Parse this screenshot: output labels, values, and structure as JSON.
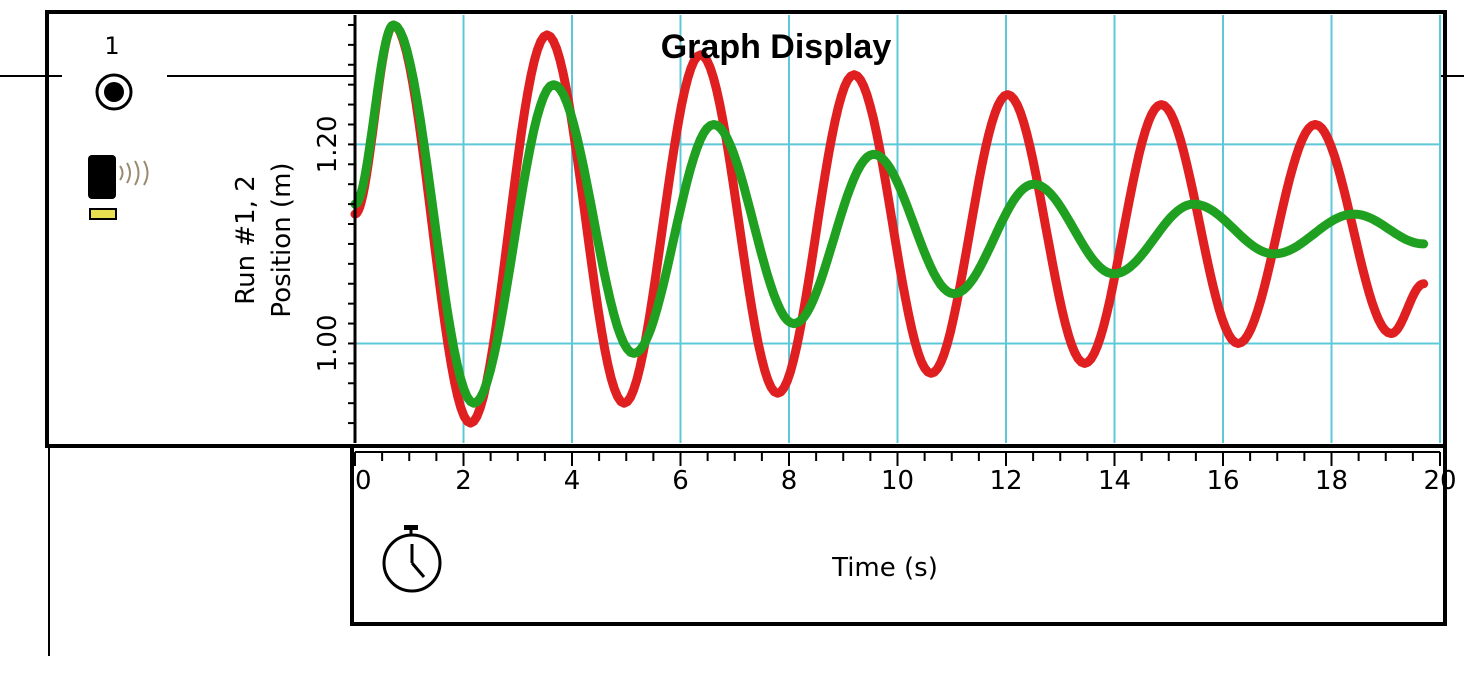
{
  "chart_data": {
    "type": "line",
    "title": "Graph Display",
    "xlabel": "Time (s)",
    "ylabel": "Position (m)",
    "run_label": "Run #1, 2",
    "xlim": [
      0,
      20
    ],
    "ylim": [
      0.9,
      1.33
    ],
    "x_ticks": [
      "0",
      "2",
      "4",
      "6",
      "8",
      "10",
      "12",
      "14",
      "16",
      "18",
      "20"
    ],
    "y_ticks": [
      "1.00",
      "1.20"
    ],
    "grid": true,
    "series": [
      {
        "color": "#e02020",
        "x": [
          0.0,
          0.71,
          2.13,
          3.54,
          4.96,
          6.37,
          7.79,
          9.2,
          10.62,
          12.03,
          13.45,
          14.86,
          16.28,
          17.7,
          19.1,
          19.7
        ],
        "y": [
          1.13,
          1.32,
          0.92,
          1.31,
          0.94,
          1.29,
          0.95,
          1.27,
          0.97,
          1.25,
          0.98,
          1.24,
          1.0,
          1.22,
          1.01,
          1.06
        ]
      },
      {
        "color": "#20a020",
        "x": [
          0.0,
          0.71,
          2.19,
          3.66,
          5.14,
          6.61,
          8.09,
          9.56,
          11.04,
          12.51,
          13.99,
          15.46,
          16.94,
          18.41,
          19.7
        ],
        "y": [
          1.14,
          1.32,
          0.94,
          1.26,
          0.99,
          1.22,
          1.02,
          1.19,
          1.05,
          1.16,
          1.07,
          1.14,
          1.09,
          1.13,
          1.1
        ]
      }
    ]
  },
  "sidebar": {
    "channel_number": "1"
  }
}
